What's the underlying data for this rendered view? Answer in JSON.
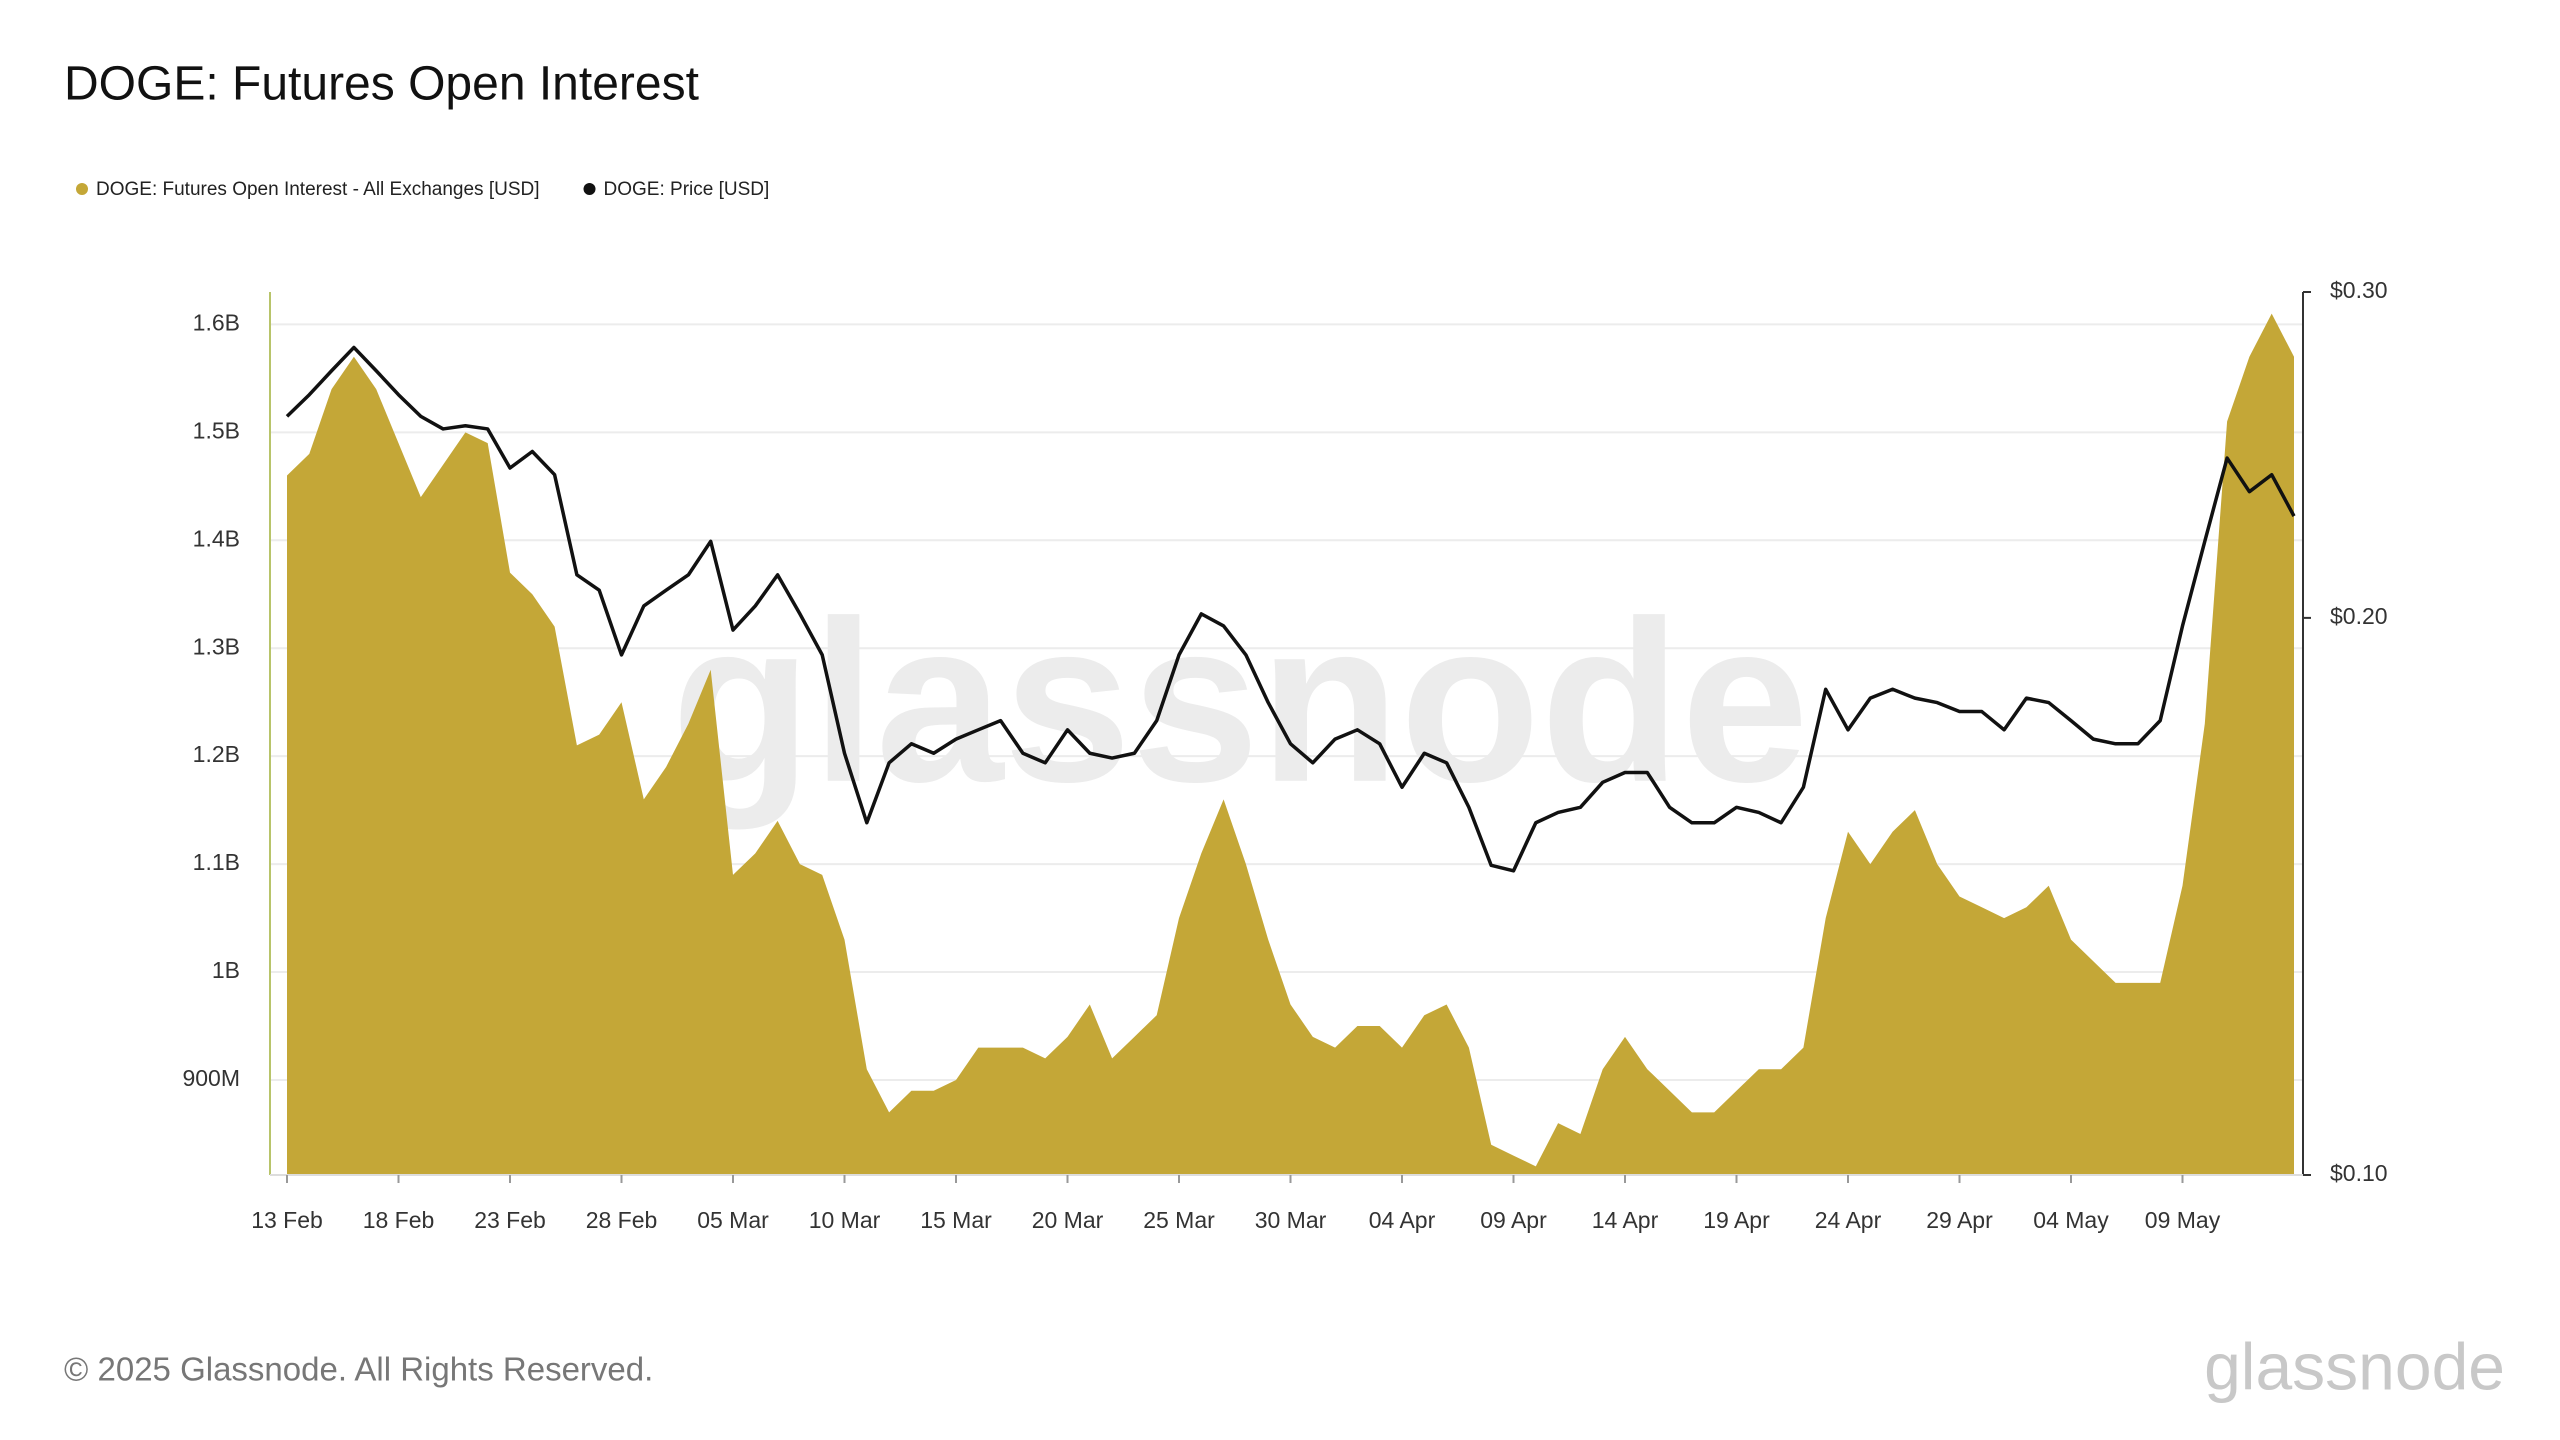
{
  "chart_data": {
    "type": "line",
    "title": "DOGE: Futures Open Interest",
    "footer": "© 2025 Glassnode. All Rights Reserved.",
    "watermark": "glassnode",
    "logo": "glassnode",
    "grid": true,
    "x": [
      "13 Feb",
      "14 Feb",
      "15 Feb",
      "16 Feb",
      "17 Feb",
      "18 Feb",
      "19 Feb",
      "20 Feb",
      "21 Feb",
      "22 Feb",
      "23 Feb",
      "24 Feb",
      "25 Feb",
      "26 Feb",
      "27 Feb",
      "28 Feb",
      "01 Mar",
      "02 Mar",
      "03 Mar",
      "04 Mar",
      "05 Mar",
      "06 Mar",
      "07 Mar",
      "08 Mar",
      "09 Mar",
      "10 Mar",
      "11 Mar",
      "12 Mar",
      "13 Mar",
      "14 Mar",
      "15 Mar",
      "16 Mar",
      "17 Mar",
      "18 Mar",
      "19 Mar",
      "20 Mar",
      "21 Mar",
      "22 Mar",
      "23 Mar",
      "24 Mar",
      "25 Mar",
      "26 Mar",
      "27 Mar",
      "28 Mar",
      "29 Mar",
      "30 Mar",
      "31 Mar",
      "01 Apr",
      "02 Apr",
      "03 Apr",
      "04 Apr",
      "05 Apr",
      "06 Apr",
      "07 Apr",
      "08 Apr",
      "09 Apr",
      "10 Apr",
      "11 Apr",
      "12 Apr",
      "13 Apr",
      "14 Apr",
      "15 Apr",
      "16 Apr",
      "17 Apr",
      "18 Apr",
      "19 Apr",
      "20 Apr",
      "21 Apr",
      "22 Apr",
      "23 Apr",
      "24 Apr",
      "25 Apr",
      "26 Apr",
      "27 Apr",
      "28 Apr",
      "29 Apr",
      "30 Apr",
      "01 May",
      "02 May",
      "03 May",
      "04 May",
      "05 May",
      "06 May",
      "07 May",
      "08 May",
      "09 May",
      "10 May",
      "11 May",
      "12 May",
      "13 May",
      "14 May"
    ],
    "xticks": [
      "13 Feb",
      "18 Feb",
      "23 Feb",
      "28 Feb",
      "05 Mar",
      "10 Mar",
      "15 Mar",
      "20 Mar",
      "25 Mar",
      "30 Mar",
      "04 Apr",
      "09 Apr",
      "14 Apr",
      "19 Apr",
      "24 Apr",
      "29 Apr",
      "04 May",
      "09 May"
    ],
    "ylim": [
      812000000,
      1630000000
    ],
    "yticks": [
      {
        "value": 900000000,
        "label": "900M"
      },
      {
        "value": 1000000000,
        "label": "1B"
      },
      {
        "value": 1100000000,
        "label": "1.1B"
      },
      {
        "value": 1200000000,
        "label": "1.2B"
      },
      {
        "value": 1300000000,
        "label": "1.3B"
      },
      {
        "value": 1400000000,
        "label": "1.4B"
      },
      {
        "value": 1500000000,
        "label": "1.5B"
      },
      {
        "value": 1600000000,
        "label": "1.6B"
      }
    ],
    "y2lim": [
      0.1,
      0.3
    ],
    "y2log": true,
    "y2ticks": [
      {
        "value": 0.1,
        "label": "$0.10"
      },
      {
        "value": 0.2,
        "label": "$0.20"
      },
      {
        "value": 0.3,
        "label": "$0.30"
      }
    ],
    "series": [
      {
        "name": "DOGE: Futures Open Interest - All Exchanges [USD]",
        "color": "#c4a737",
        "style": "area",
        "values": [
          1460000000,
          1480000000,
          1540000000,
          1570000000,
          1540000000,
          1490000000,
          1440000000,
          1470000000,
          1500000000,
          1490000000,
          1370000000,
          1350000000,
          1320000000,
          1210000000,
          1220000000,
          1250000000,
          1160000000,
          1190000000,
          1230000000,
          1280000000,
          1090000000,
          1110000000,
          1140000000,
          1100000000,
          1090000000,
          1030000000,
          910000000,
          870000000,
          890000000,
          890000000,
          900000000,
          930000000,
          930000000,
          930000000,
          920000000,
          940000000,
          970000000,
          920000000,
          940000000,
          960000000,
          1050000000,
          1110000000,
          1160000000,
          1100000000,
          1030000000,
          970000000,
          940000000,
          930000000,
          950000000,
          950000000,
          930000000,
          960000000,
          970000000,
          930000000,
          840000000,
          830000000,
          820000000,
          860000000,
          850000000,
          910000000,
          940000000,
          910000000,
          890000000,
          870000000,
          870000000,
          890000000,
          910000000,
          910000000,
          930000000,
          1050000000,
          1130000000,
          1100000000,
          1130000000,
          1150000000,
          1100000000,
          1070000000,
          1060000000,
          1050000000,
          1060000000,
          1080000000,
          1030000000,
          1010000000,
          990000000,
          990000000,
          990000000,
          1080000000,
          1230000000,
          1510000000,
          1570000000,
          1610000000,
          1570000000
        ]
      },
      {
        "name": "DOGE: Price [USD]",
        "color": "#111111",
        "style": "line",
        "axis": "y2",
        "values": [
          0.257,
          0.264,
          0.272,
          0.28,
          0.272,
          0.264,
          0.257,
          0.253,
          0.254,
          0.253,
          0.241,
          0.246,
          0.239,
          0.211,
          0.207,
          0.191,
          0.203,
          0.207,
          0.211,
          0.22,
          0.197,
          0.203,
          0.211,
          0.201,
          0.191,
          0.169,
          0.155,
          0.167,
          0.171,
          0.169,
          0.172,
          0.174,
          0.176,
          0.169,
          0.167,
          0.174,
          0.169,
          0.168,
          0.169,
          0.176,
          0.191,
          0.201,
          0.198,
          0.191,
          0.18,
          0.171,
          0.167,
          0.172,
          0.174,
          0.171,
          0.162,
          0.169,
          0.167,
          0.158,
          0.147,
          0.146,
          0.155,
          0.157,
          0.158,
          0.163,
          0.165,
          0.165,
          0.158,
          0.155,
          0.155,
          0.158,
          0.157,
          0.155,
          0.162,
          0.183,
          0.174,
          0.181,
          0.183,
          0.181,
          0.18,
          0.178,
          0.178,
          0.174,
          0.181,
          0.18,
          0.176,
          0.172,
          0.171,
          0.171,
          0.176,
          0.198,
          0.22,
          0.244,
          0.234,
          0.239,
          0.227
        ]
      }
    ]
  }
}
